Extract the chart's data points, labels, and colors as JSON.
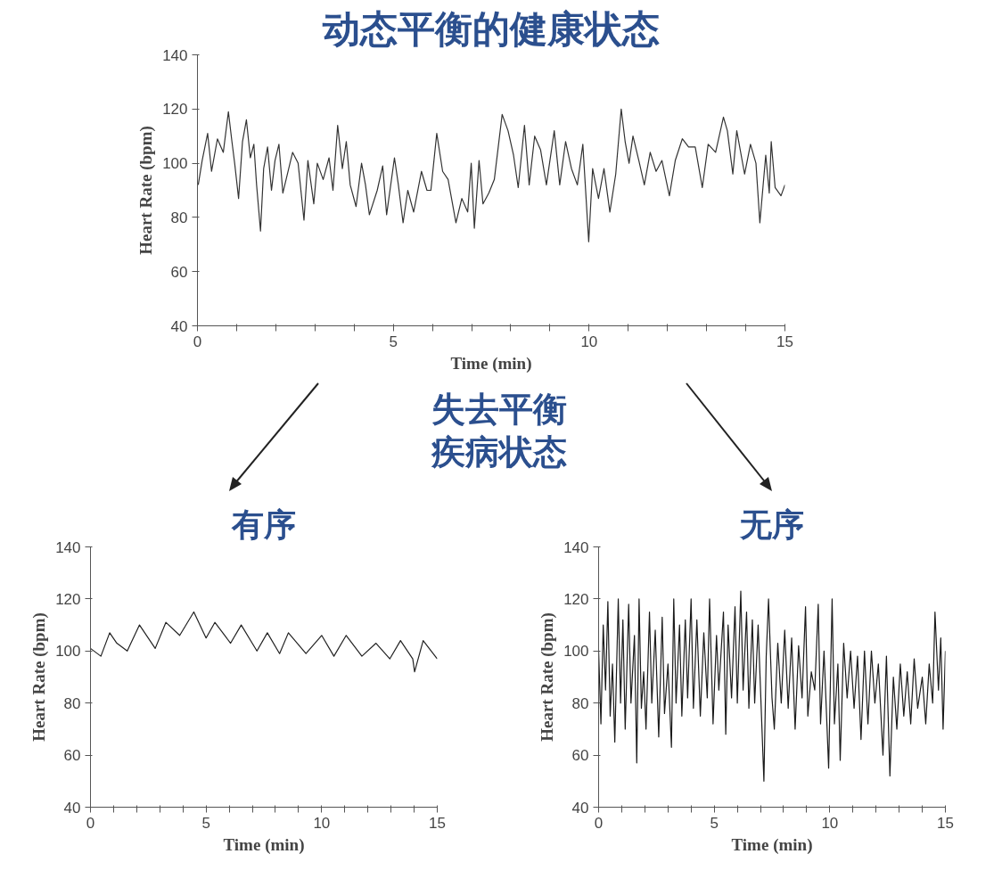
{
  "chart_data": [
    {
      "type": "line",
      "title": "动态平衡的健康状态",
      "xlabel": "Time (min)",
      "ylabel": "Heart Rate (bpm)",
      "annotations": [
        "失去平衡",
        "疾病状态"
      ],
      "xlim": [
        0,
        15
      ],
      "ylim": [
        40,
        140
      ],
      "yticks": [
        40,
        60,
        80,
        100,
        120,
        140
      ],
      "xticks": [
        0,
        {
          "value": 1,
          "label": null
        },
        {
          "value": 2,
          "label": null
        },
        {
          "value": 3,
          "label": null
        },
        {
          "value": 4,
          "label": null
        },
        5,
        {
          "value": 6,
          "label": null
        },
        {
          "value": 7,
          "label": null
        },
        {
          "value": 8,
          "label": null
        },
        {
          "value": 9,
          "label": null
        },
        10,
        {
          "value": 11,
          "label": null
        },
        {
          "value": 12,
          "label": null
        },
        {
          "value": 13,
          "label": null
        },
        {
          "value": 14,
          "label": null
        },
        15
      ],
      "x": [
        0.02,
        0.12,
        0.26,
        0.36,
        0.51,
        0.66,
        0.79,
        0.88,
        0.95,
        1.05,
        1.15,
        1.25,
        1.35,
        1.44,
        1.51,
        1.61,
        1.69,
        1.79,
        1.89,
        1.98,
        2.08,
        2.18,
        2.33,
        2.43,
        2.57,
        2.72,
        2.82,
        2.97,
        3.06,
        3.21,
        3.36,
        3.46,
        3.58,
        3.7,
        3.8,
        3.9,
        4.05,
        4.19,
        4.29,
        4.39,
        4.59,
        4.73,
        4.83,
        5.03,
        5.13,
        5.25,
        5.37,
        5.52,
        5.72,
        5.86,
        5.96,
        6.11,
        6.26,
        6.4,
        6.6,
        6.75,
        6.9,
        6.99,
        7.07,
        7.19,
        7.29,
        7.44,
        7.58,
        7.78,
        7.93,
        8.07,
        8.19,
        8.35,
        8.47,
        8.61,
        8.76,
        8.91,
        9.11,
        9.25,
        9.4,
        9.55,
        9.7,
        9.84,
        9.99,
        10.09,
        10.24,
        10.38,
        10.53,
        10.68,
        10.82,
        10.92,
        11.02,
        11.12,
        11.27,
        11.41,
        11.56,
        11.71,
        11.86,
        12.05,
        12.2,
        12.38,
        12.54,
        12.71,
        12.89,
        13.04,
        13.23,
        13.43,
        13.53,
        13.67,
        13.77,
        13.97,
        14.12,
        14.26,
        14.36,
        14.51,
        14.6,
        14.65,
        14.75,
        14.9,
        15.0
      ],
      "series": [
        {
          "color": "#333333",
          "values": [
            92,
            101,
            111,
            97,
            109,
            104,
            119,
            108,
            100,
            87,
            108,
            116,
            102,
            107,
            92,
            75,
            98,
            106,
            90,
            101,
            107,
            89,
            98,
            104,
            100,
            79,
            101,
            85,
            100,
            94,
            102,
            90,
            114,
            98,
            108,
            92,
            84,
            100,
            92,
            81,
            90,
            99,
            81,
            102,
            92,
            78,
            90,
            82,
            97,
            90,
            90,
            111,
            97,
            94,
            78,
            87,
            82,
            100,
            76,
            101,
            85,
            89,
            94,
            118,
            112,
            103,
            91,
            114,
            92,
            110,
            105,
            92,
            112,
            92,
            108,
            98,
            92,
            107,
            71,
            98,
            87,
            98,
            82,
            96,
            120,
            108,
            100,
            110,
            101,
            92,
            104,
            97,
            101,
            88,
            101,
            109,
            106,
            106,
            91,
            107,
            104,
            117,
            112,
            96,
            112,
            96,
            107,
            100,
            78,
            103,
            89,
            108,
            91,
            88,
            92
          ]
        }
      ]
    },
    {
      "type": "line",
      "title": "有序",
      "xlabel": "Time (min)",
      "ylabel": "Heart Rate (bpm)",
      "xlim": [
        0,
        15
      ],
      "ylim": [
        40,
        140
      ],
      "yticks": [
        40,
        60,
        80,
        100,
        120,
        140
      ],
      "xticks": [
        0,
        {
          "value": 1,
          "label": null
        },
        {
          "value": 2,
          "label": null
        },
        {
          "value": 3,
          "label": null
        },
        {
          "value": 4,
          "label": null
        },
        5,
        {
          "value": 6,
          "label": null
        },
        {
          "value": 7,
          "label": null
        },
        {
          "value": 8,
          "label": null
        },
        {
          "value": 9,
          "label": null
        },
        10,
        {
          "value": 11,
          "label": null
        },
        {
          "value": 12,
          "label": null
        },
        {
          "value": 13,
          "label": null
        },
        {
          "value": 14,
          "label": null
        },
        15
      ],
      "x": [
        0,
        0.45,
        0.83,
        1.14,
        1.59,
        2.12,
        2.8,
        3.26,
        3.86,
        4.47,
        5.0,
        5.38,
        6.06,
        6.52,
        7.2,
        7.65,
        8.18,
        8.56,
        9.32,
        10.0,
        10.53,
        11.06,
        11.74,
        12.35,
        12.95,
        13.41,
        13.94,
        14.02,
        14.39,
        15.0
      ],
      "series": [
        {
          "color": "#222222",
          "values": [
            101,
            98,
            107,
            103,
            100,
            110,
            101,
            111,
            106,
            115,
            105,
            111,
            103,
            110,
            100,
            107,
            99,
            107,
            99,
            106,
            98,
            106,
            98,
            103,
            97,
            104,
            97,
            92,
            104,
            97
          ]
        }
      ]
    },
    {
      "type": "line",
      "title": "无序",
      "xlabel": "Time (min)",
      "ylabel": "Heart Rate (bpm)",
      "xlim": [
        0,
        15
      ],
      "ylim": [
        40,
        140
      ],
      "yticks": [
        40,
        60,
        80,
        100,
        120,
        140
      ],
      "xticks": [
        0,
        {
          "value": 1,
          "label": null
        },
        {
          "value": 2,
          "label": null
        },
        {
          "value": 3,
          "label": null
        },
        {
          "value": 4,
          "label": null
        },
        5,
        {
          "value": 6,
          "label": null
        },
        {
          "value": 7,
          "label": null
        },
        {
          "value": 8,
          "label": null
        },
        {
          "value": 9,
          "label": null
        },
        10,
        {
          "value": 11,
          "label": null
        },
        {
          "value": 12,
          "label": null
        },
        {
          "value": 13,
          "label": null
        },
        {
          "value": 14,
          "label": null
        },
        15
      ],
      "x": [
        0,
        0.1,
        0.2,
        0.3,
        0.4,
        0.5,
        0.6,
        0.7,
        0.85,
        0.95,
        1.05,
        1.15,
        1.3,
        1.4,
        1.55,
        1.65,
        1.75,
        1.85,
        1.95,
        2.05,
        2.2,
        2.3,
        2.45,
        2.6,
        2.75,
        2.85,
        3.0,
        3.15,
        3.25,
        3.35,
        3.5,
        3.6,
        3.75,
        3.85,
        4.0,
        4.1,
        4.25,
        4.4,
        4.55,
        4.7,
        4.8,
        4.95,
        5.1,
        5.2,
        5.4,
        5.5,
        5.6,
        5.75,
        5.9,
        6.0,
        6.15,
        6.25,
        6.4,
        6.5,
        6.65,
        6.75,
        6.9,
        7.15,
        7.25,
        7.35,
        7.5,
        7.6,
        7.75,
        7.9,
        8.05,
        8.2,
        8.35,
        8.5,
        8.65,
        8.8,
        8.95,
        9.05,
        9.2,
        9.35,
        9.5,
        9.6,
        9.75,
        9.95,
        10.1,
        10.2,
        10.35,
        10.45,
        10.6,
        10.75,
        10.9,
        11.05,
        11.2,
        11.35,
        11.5,
        11.65,
        11.8,
        11.95,
        12.1,
        12.3,
        12.45,
        12.6,
        12.75,
        12.9,
        13.05,
        13.2,
        13.35,
        13.5,
        13.65,
        13.8,
        14.0,
        14.15,
        14.3,
        14.45,
        14.55,
        14.7,
        14.8,
        14.9,
        15.0
      ],
      "series": [
        {
          "color": "#1a1a1a",
          "values": [
            100,
            72,
            110,
            85,
            119,
            75,
            95,
            65,
            120,
            80,
            112,
            70,
            118,
            80,
            106,
            57,
            120,
            78,
            92,
            70,
            115,
            80,
            108,
            67,
            113,
            76,
            95,
            63,
            120,
            80,
            110,
            75,
            112,
            82,
            120,
            78,
            112,
            75,
            107,
            82,
            120,
            72,
            106,
            85,
            115,
            68,
            110,
            82,
            117,
            80,
            123,
            85,
            115,
            78,
            112,
            80,
            110,
            50,
            98,
            120,
            82,
            70,
            103,
            80,
            108,
            78,
            105,
            70,
            102,
            82,
            117,
            75,
            92,
            85,
            118,
            72,
            100,
            55,
            120,
            72,
            95,
            58,
            103,
            82,
            100,
            78,
            98,
            66,
            100,
            72,
            100,
            80,
            95,
            60,
            98,
            52,
            90,
            70,
            95,
            75,
            92,
            72,
            97,
            78,
            90,
            72,
            95,
            80,
            115,
            85,
            105,
            70,
            100
          ]
        }
      ]
    }
  ]
}
